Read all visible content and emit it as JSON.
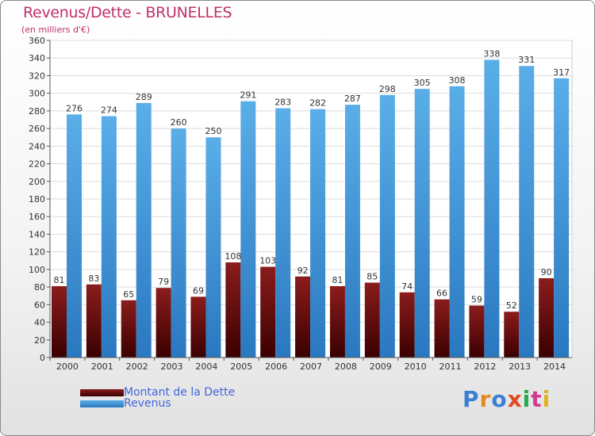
{
  "title": "Revenus/Dette - BRUNELLES",
  "subtitle": "(en milliers d'€)",
  "legend": {
    "debt_label": "Montant de la Dette",
    "revenue_label": "Revenus"
  },
  "logo_text": "Proxiti",
  "colors": {
    "title": "#c0306a",
    "debt_top": "#8b1c1c",
    "debt_bottom": "#3a0000",
    "revenue_top": "#5aaee8",
    "revenue_bottom": "#2a78c0",
    "legend_text": "#4466dd"
  },
  "chart_data": {
    "type": "bar",
    "title": "Revenus/Dette - BRUNELLES",
    "ylabel": "(en milliers d'€)",
    "xlabel": "",
    "ylim": [
      0,
      360
    ],
    "yticks": [
      0,
      20,
      40,
      60,
      80,
      100,
      120,
      140,
      160,
      180,
      200,
      220,
      240,
      260,
      280,
      300,
      320,
      340,
      360
    ],
    "grid": true,
    "legend_position": "bottom-left",
    "categories": [
      "2000",
      "2001",
      "2002",
      "2003",
      "2004",
      "2005",
      "2006",
      "2007",
      "2008",
      "2009",
      "2010",
      "2011",
      "2012",
      "2013",
      "2014"
    ],
    "series": [
      {
        "name": "Montant de la Dette",
        "values": [
          81,
          83,
          65,
          79,
          69,
          108,
          103,
          92,
          81,
          85,
          74,
          66,
          59,
          52,
          90
        ]
      },
      {
        "name": "Revenus",
        "values": [
          276,
          274,
          289,
          260,
          250,
          291,
          283,
          282,
          287,
          298,
          305,
          308,
          338,
          331,
          317
        ]
      }
    ]
  }
}
